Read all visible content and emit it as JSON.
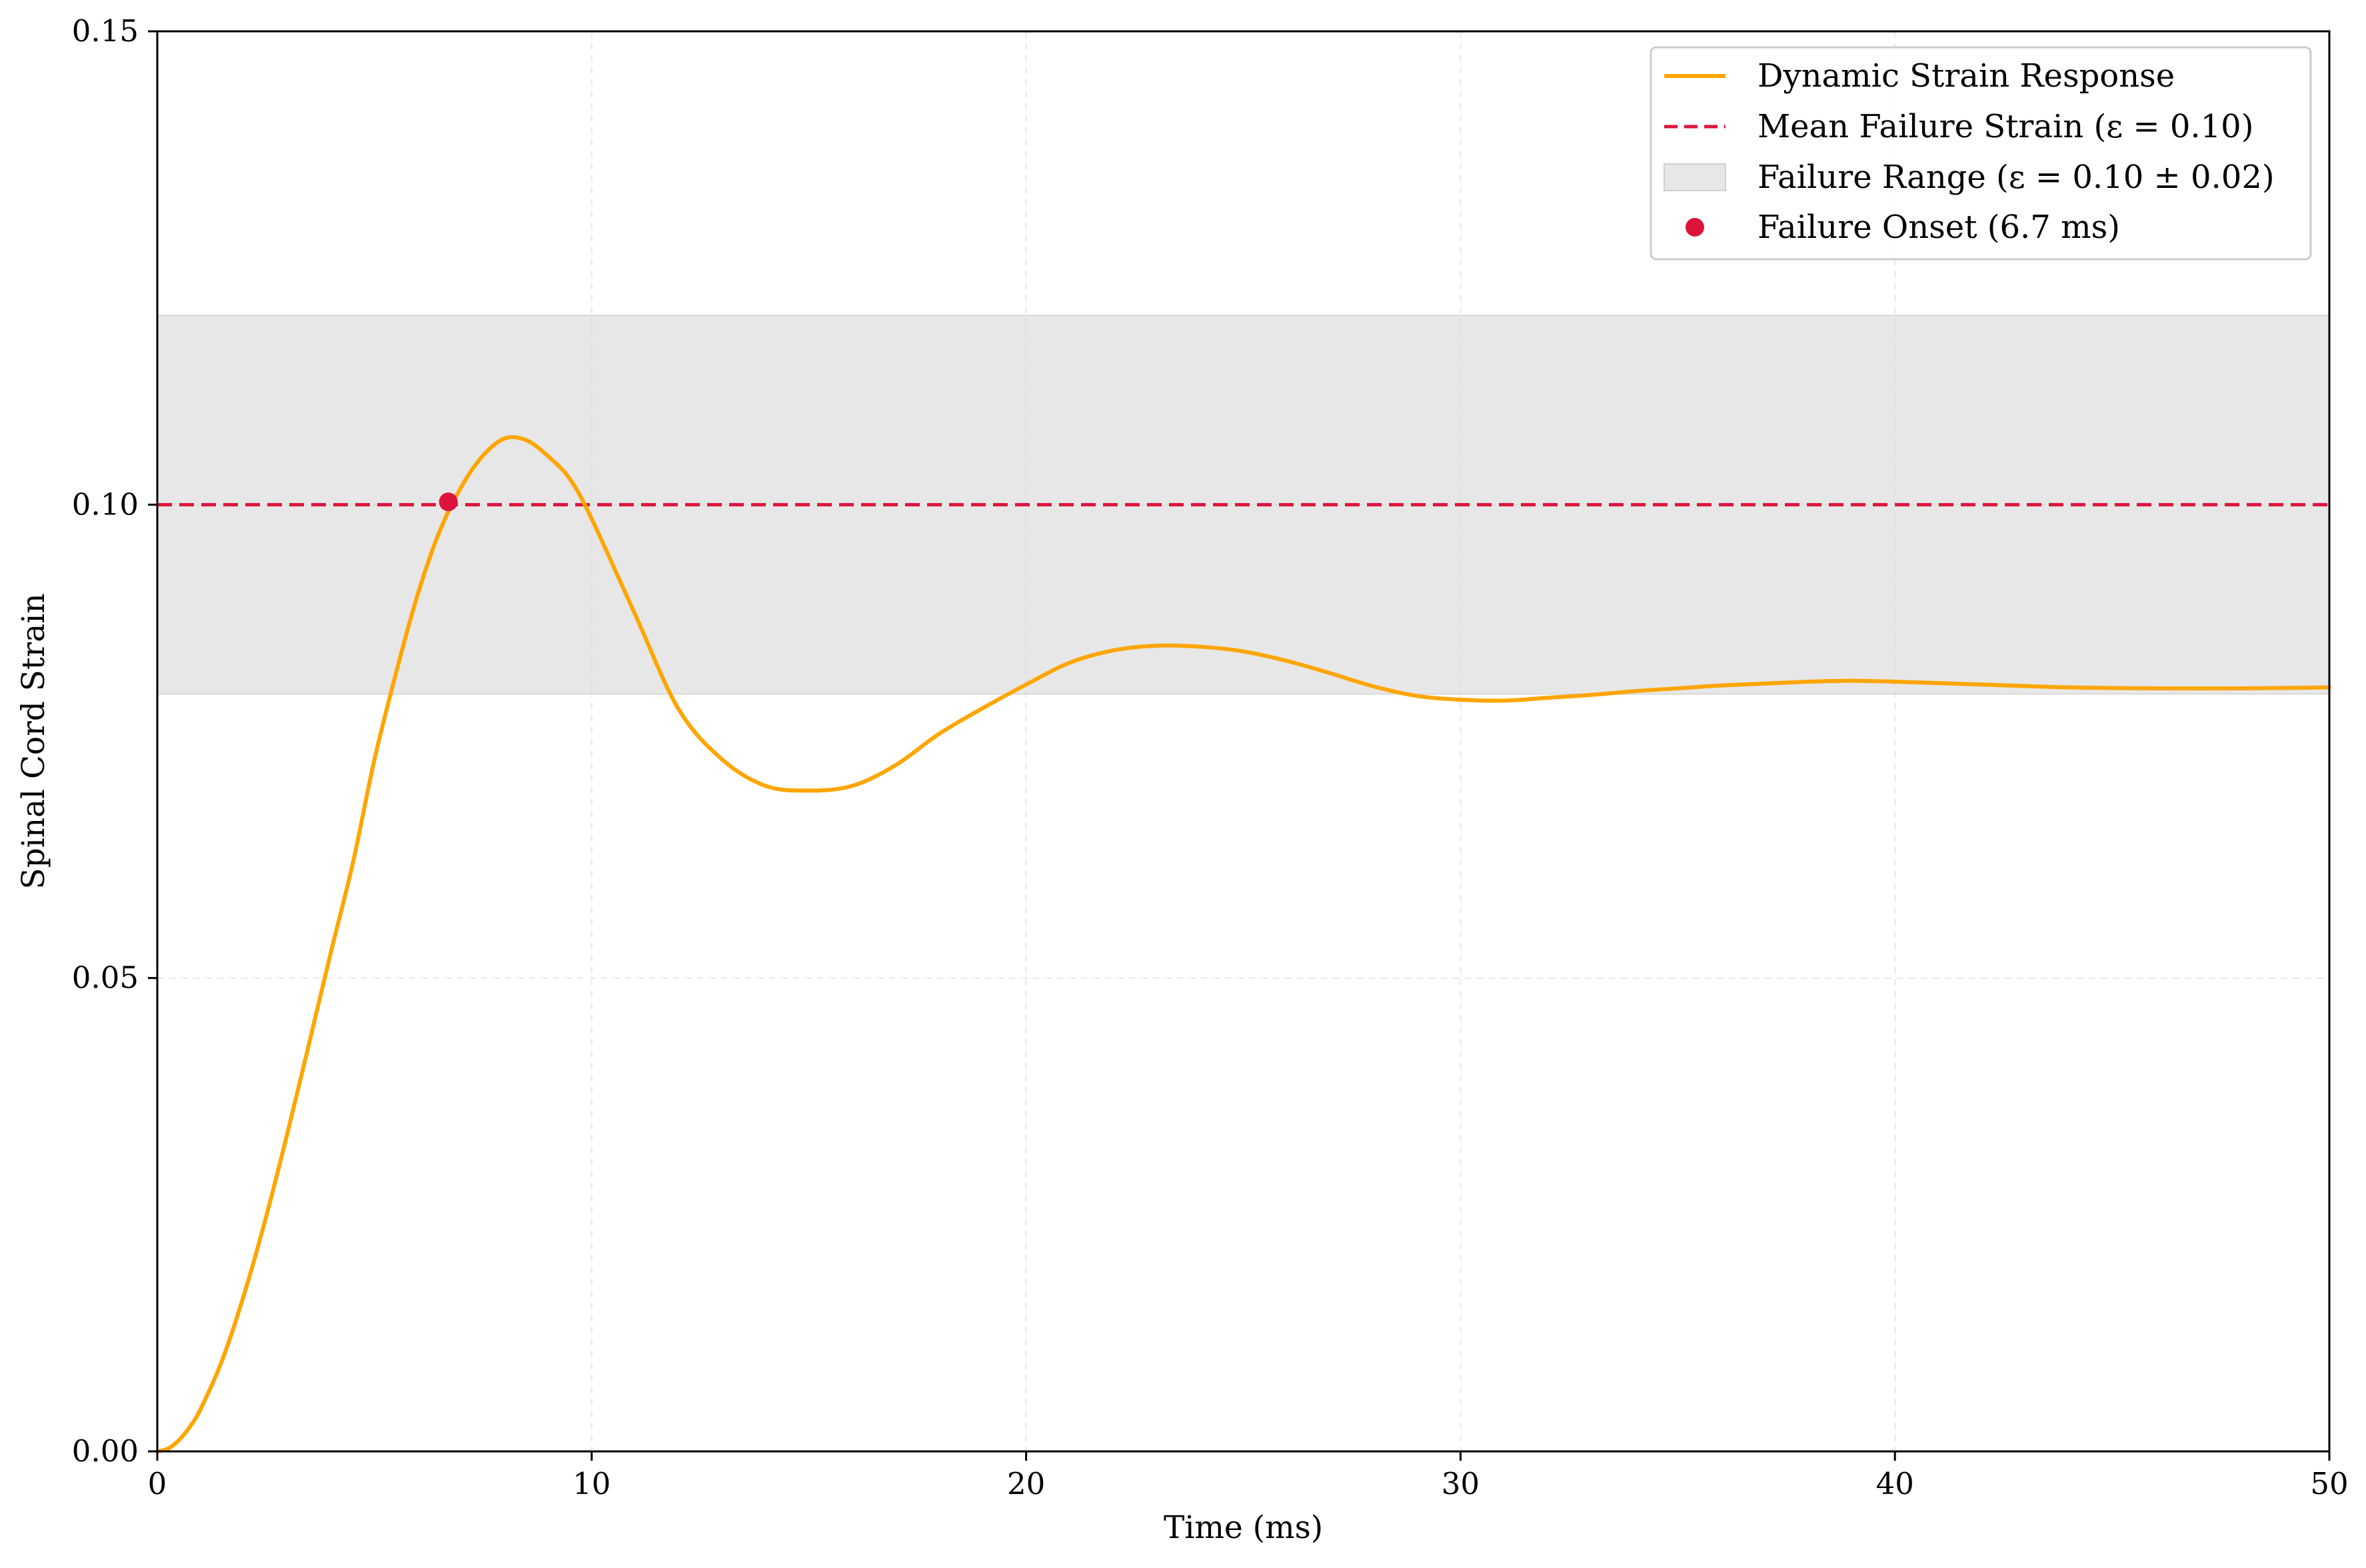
{
  "chart_data": {
    "type": "line",
    "xlabel": "Time (ms)",
    "ylabel": "Spinal Cord Strain",
    "xlim": [
      0,
      50
    ],
    "ylim": [
      0,
      0.15
    ],
    "x_ticks": [
      0,
      10,
      20,
      30,
      40,
      50
    ],
    "x_tick_labels": [
      "0",
      "10",
      "20",
      "30",
      "40",
      "50"
    ],
    "y_ticks": [
      0,
      0.05,
      0.1,
      0.15
    ],
    "y_tick_labels": [
      "0.00",
      "0.05",
      "0.10",
      "0.15"
    ],
    "grid": true,
    "legend_position": "top-right",
    "series": [
      {
        "name": "Dynamic Strain Response",
        "kind": "line",
        "color": "#FFA500",
        "x": [
          0,
          0.25,
          0.5,
          0.75,
          1,
          1.5,
          2,
          2.5,
          3,
          3.5,
          4,
          4.5,
          5,
          5.5,
          6,
          6.5,
          7,
          7.5,
          8,
          8.5,
          9,
          9.5,
          10,
          11,
          12,
          13,
          14,
          15,
          16,
          17,
          18,
          19,
          20,
          21,
          22,
          23,
          24,
          25,
          26,
          27,
          28,
          29,
          30,
          31,
          32,
          33,
          34,
          35,
          36,
          37,
          38,
          39,
          40,
          42,
          44,
          46,
          48,
          50
        ],
        "y": [
          0,
          0.0003,
          0.0012,
          0.0026,
          0.0045,
          0.0097,
          0.0166,
          0.0247,
          0.0337,
          0.0432,
          0.0528,
          0.0621,
          0.0731,
          0.0823,
          0.0906,
          0.0972,
          0.1019,
          0.1052,
          0.107,
          0.1068,
          0.1051,
          0.1027,
          0.0985,
          0.0884,
          0.0784,
          0.0731,
          0.0703,
          0.0698,
          0.0703,
          0.0725,
          0.0758,
          0.0785,
          0.081,
          0.0833,
          0.0846,
          0.0851,
          0.085,
          0.0845,
          0.0835,
          0.0822,
          0.0808,
          0.0798,
          0.0794,
          0.0793,
          0.0796,
          0.0799,
          0.0803,
          0.0806,
          0.0809,
          0.0811,
          0.0813,
          0.0814,
          0.0813,
          0.081,
          0.0807,
          0.0806,
          0.0806,
          0.0807
        ]
      },
      {
        "name": "Mean Failure Strain (ε = 0.10)",
        "kind": "hline",
        "color": "#DC143C",
        "y": 0.1
      },
      {
        "name": "Failure Range (ε = 0.10 ± 0.02)",
        "kind": "band",
        "color": "#E7E7E7",
        "y_range": [
          0.08,
          0.12
        ]
      },
      {
        "name": "Failure Onset (6.7 ms)",
        "kind": "point",
        "color": "#DC143C",
        "x": 6.7,
        "y": 0.1003
      }
    ]
  }
}
